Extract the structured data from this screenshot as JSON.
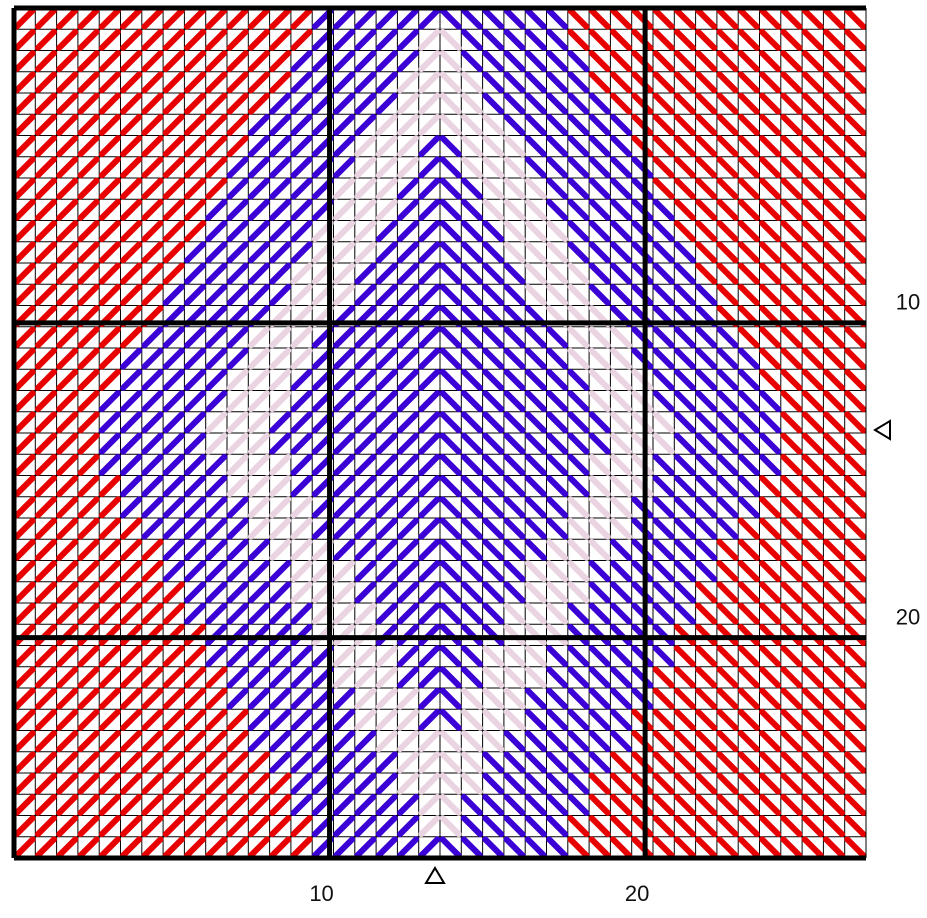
{
  "grid": {
    "xlim": [
      0,
      27
    ],
    "ylim": [
      0,
      27
    ],
    "xticks": [
      10,
      20
    ],
    "yticks": [
      10,
      20
    ]
  }
}
